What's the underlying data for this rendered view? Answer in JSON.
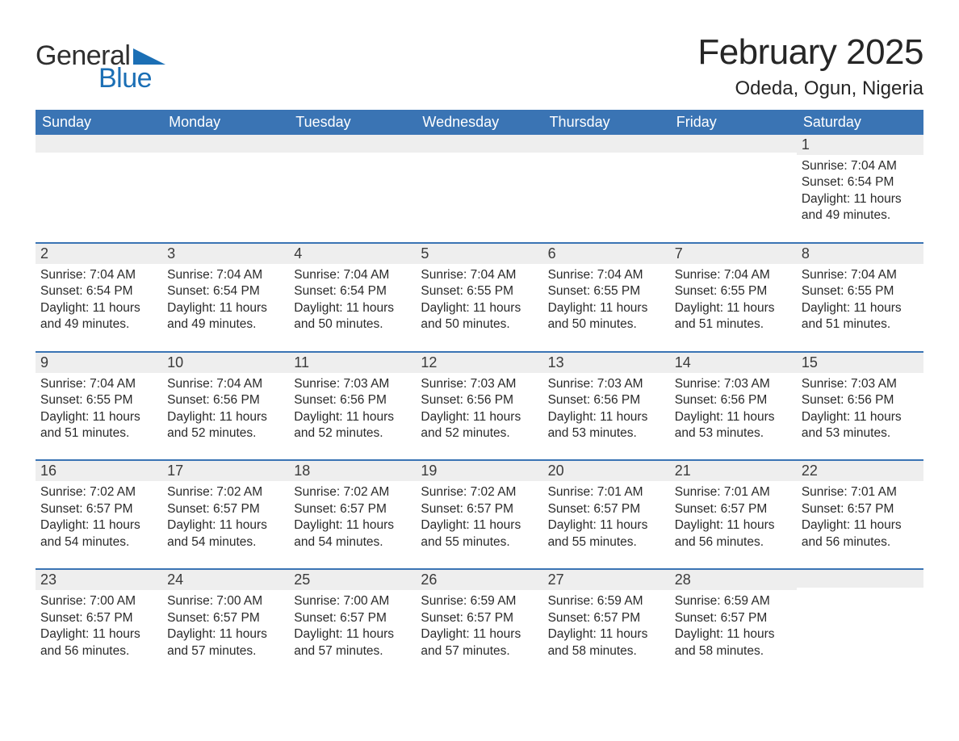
{
  "colors": {
    "header_bg": "#3a74b4",
    "header_text": "#ffffff",
    "daynum_bg": "#eeeeee",
    "week_divider": "#3a74b4",
    "body_text": "#2a2a2a",
    "logo_blue": "#1b6fb5",
    "logo_dark": "#2f2f2f",
    "page_bg": "#ffffff"
  },
  "logo": {
    "line1": "General",
    "line2": "Blue"
  },
  "title": "February 2025",
  "location": "Odeda, Ogun, Nigeria",
  "weekday_labels": [
    "Sunday",
    "Monday",
    "Tuesday",
    "Wednesday",
    "Thursday",
    "Friday",
    "Saturday"
  ],
  "labels": {
    "sunrise_prefix": "Sunrise: ",
    "sunset_prefix": "Sunset: ",
    "daylight_prefix": "Daylight: "
  },
  "weeks": [
    [
      {
        "day": null
      },
      {
        "day": null
      },
      {
        "day": null
      },
      {
        "day": null
      },
      {
        "day": null
      },
      {
        "day": null
      },
      {
        "day": "1",
        "sunrise": "7:04 AM",
        "sunset": "6:54 PM",
        "daylight": "11 hours and 49 minutes."
      }
    ],
    [
      {
        "day": "2",
        "sunrise": "7:04 AM",
        "sunset": "6:54 PM",
        "daylight": "11 hours and 49 minutes."
      },
      {
        "day": "3",
        "sunrise": "7:04 AM",
        "sunset": "6:54 PM",
        "daylight": "11 hours and 49 minutes."
      },
      {
        "day": "4",
        "sunrise": "7:04 AM",
        "sunset": "6:54 PM",
        "daylight": "11 hours and 50 minutes."
      },
      {
        "day": "5",
        "sunrise": "7:04 AM",
        "sunset": "6:55 PM",
        "daylight": "11 hours and 50 minutes."
      },
      {
        "day": "6",
        "sunrise": "7:04 AM",
        "sunset": "6:55 PM",
        "daylight": "11 hours and 50 minutes."
      },
      {
        "day": "7",
        "sunrise": "7:04 AM",
        "sunset": "6:55 PM",
        "daylight": "11 hours and 51 minutes."
      },
      {
        "day": "8",
        "sunrise": "7:04 AM",
        "sunset": "6:55 PM",
        "daylight": "11 hours and 51 minutes."
      }
    ],
    [
      {
        "day": "9",
        "sunrise": "7:04 AM",
        "sunset": "6:55 PM",
        "daylight": "11 hours and 51 minutes."
      },
      {
        "day": "10",
        "sunrise": "7:04 AM",
        "sunset": "6:56 PM",
        "daylight": "11 hours and 52 minutes."
      },
      {
        "day": "11",
        "sunrise": "7:03 AM",
        "sunset": "6:56 PM",
        "daylight": "11 hours and 52 minutes."
      },
      {
        "day": "12",
        "sunrise": "7:03 AM",
        "sunset": "6:56 PM",
        "daylight": "11 hours and 52 minutes."
      },
      {
        "day": "13",
        "sunrise": "7:03 AM",
        "sunset": "6:56 PM",
        "daylight": "11 hours and 53 minutes."
      },
      {
        "day": "14",
        "sunrise": "7:03 AM",
        "sunset": "6:56 PM",
        "daylight": "11 hours and 53 minutes."
      },
      {
        "day": "15",
        "sunrise": "7:03 AM",
        "sunset": "6:56 PM",
        "daylight": "11 hours and 53 minutes."
      }
    ],
    [
      {
        "day": "16",
        "sunrise": "7:02 AM",
        "sunset": "6:57 PM",
        "daylight": "11 hours and 54 minutes."
      },
      {
        "day": "17",
        "sunrise": "7:02 AM",
        "sunset": "6:57 PM",
        "daylight": "11 hours and 54 minutes."
      },
      {
        "day": "18",
        "sunrise": "7:02 AM",
        "sunset": "6:57 PM",
        "daylight": "11 hours and 54 minutes."
      },
      {
        "day": "19",
        "sunrise": "7:02 AM",
        "sunset": "6:57 PM",
        "daylight": "11 hours and 55 minutes."
      },
      {
        "day": "20",
        "sunrise": "7:01 AM",
        "sunset": "6:57 PM",
        "daylight": "11 hours and 55 minutes."
      },
      {
        "day": "21",
        "sunrise": "7:01 AM",
        "sunset": "6:57 PM",
        "daylight": "11 hours and 56 minutes."
      },
      {
        "day": "22",
        "sunrise": "7:01 AM",
        "sunset": "6:57 PM",
        "daylight": "11 hours and 56 minutes."
      }
    ],
    [
      {
        "day": "23",
        "sunrise": "7:00 AM",
        "sunset": "6:57 PM",
        "daylight": "11 hours and 56 minutes."
      },
      {
        "day": "24",
        "sunrise": "7:00 AM",
        "sunset": "6:57 PM",
        "daylight": "11 hours and 57 minutes."
      },
      {
        "day": "25",
        "sunrise": "7:00 AM",
        "sunset": "6:57 PM",
        "daylight": "11 hours and 57 minutes."
      },
      {
        "day": "26",
        "sunrise": "6:59 AM",
        "sunset": "6:57 PM",
        "daylight": "11 hours and 57 minutes."
      },
      {
        "day": "27",
        "sunrise": "6:59 AM",
        "sunset": "6:57 PM",
        "daylight": "11 hours and 58 minutes."
      },
      {
        "day": "28",
        "sunrise": "6:59 AM",
        "sunset": "6:57 PM",
        "daylight": "11 hours and 58 minutes."
      },
      {
        "day": null
      }
    ]
  ]
}
